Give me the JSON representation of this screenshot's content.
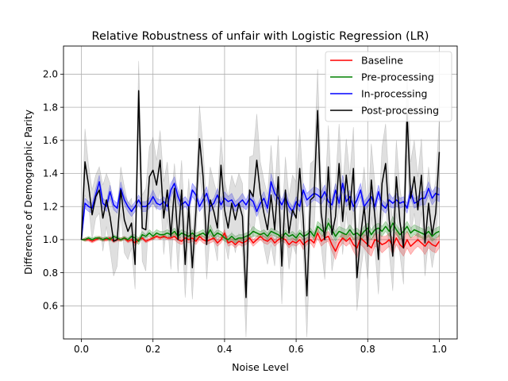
{
  "chart_data": {
    "type": "line",
    "title": "Relative Robustness of unfair with Logistic Regression (LR)",
    "xlabel": "Noise Level",
    "ylabel": "Difference of Demographic Parity",
    "xlim": [
      -0.05,
      1.05
    ],
    "ylim": [
      0.4,
      2.17
    ],
    "xticks": [
      0.0,
      0.2,
      0.4,
      0.6,
      0.8,
      1.0
    ],
    "yticks": [
      0.6,
      0.8,
      1.0,
      1.2,
      1.4,
      1.6,
      1.8,
      2.0
    ],
    "xtick_labels": [
      "0.0",
      "0.2",
      "0.4",
      "0.6",
      "0.8",
      "1.0"
    ],
    "ytick_labels": [
      "0.6",
      "0.8",
      "1.0",
      "1.2",
      "1.4",
      "1.6",
      "1.8",
      "2.0"
    ],
    "grid": true,
    "legend_position": "top-right",
    "x": [
      0.0,
      0.01,
      0.02,
      0.03,
      0.04,
      0.05,
      0.06,
      0.07,
      0.08,
      0.09,
      0.1,
      0.11,
      0.12,
      0.13,
      0.14,
      0.15,
      0.16,
      0.17,
      0.18,
      0.19,
      0.2,
      0.21,
      0.22,
      0.23,
      0.24,
      0.25,
      0.26,
      0.27,
      0.28,
      0.29,
      0.3,
      0.31,
      0.32,
      0.33,
      0.34,
      0.35,
      0.36,
      0.37,
      0.38,
      0.39,
      0.4,
      0.41,
      0.42,
      0.43,
      0.44,
      0.45,
      0.46,
      0.47,
      0.48,
      0.49,
      0.5,
      0.51,
      0.52,
      0.53,
      0.54,
      0.55,
      0.56,
      0.57,
      0.58,
      0.59,
      0.6,
      0.61,
      0.62,
      0.63,
      0.64,
      0.65,
      0.66,
      0.67,
      0.68,
      0.69,
      0.7,
      0.71,
      0.72,
      0.73,
      0.74,
      0.75,
      0.76,
      0.77,
      0.78,
      0.79,
      0.8,
      0.81,
      0.82,
      0.83,
      0.84,
      0.85,
      0.86,
      0.87,
      0.88,
      0.89,
      0.9,
      0.91,
      0.92,
      0.93,
      0.94,
      0.95,
      0.96,
      0.97,
      0.98,
      0.99,
      1.0
    ],
    "series": [
      {
        "name": "Baseline",
        "color": "#ff0000",
        "band_color": "#ff0000",
        "values": [
          1.0,
          1.0,
          1.0,
          0.99,
          1.0,
          1.01,
          1.0,
          1.0,
          1.01,
          0.99,
          1.0,
          1.0,
          1.01,
          0.99,
          1.0,
          0.98,
          1.0,
          1.01,
          0.99,
          1.0,
          1.01,
          1.02,
          1.01,
          1.02,
          1.01,
          1.01,
          1.02,
          1.0,
          0.99,
          1.01,
          1.0,
          1.01,
          0.99,
          1.02,
          1.0,
          0.99,
          1.0,
          1.01,
          0.98,
          1.0,
          1.04,
          0.98,
          0.99,
          0.97,
          0.99,
          0.98,
          0.99,
          1.01,
          0.98,
          1.0,
          1.02,
          1.0,
          0.99,
          1.01,
          0.98,
          1.0,
          1.01,
          1.0,
          0.97,
          0.99,
          0.98,
          1.0,
          0.97,
          0.99,
          1.0,
          0.98,
          1.04,
          0.99,
          1.01,
          1.02,
          0.97,
          0.93,
          0.98,
          1.01,
          0.99,
          1.01,
          0.97,
          0.95,
          1.01,
          0.99,
          0.97,
          0.95,
          1.0,
          0.99,
          0.97,
          0.98,
          1.0,
          0.96,
          1.01,
          0.97,
          0.95,
          1.0,
          0.96,
          0.98,
          1.0,
          0.98,
          0.96,
          0.99,
          0.97,
          0.96,
          0.99
        ],
        "spread": [
          0.0,
          0.01,
          0.01,
          0.01,
          0.01,
          0.01,
          0.01,
          0.01,
          0.01,
          0.01,
          0.01,
          0.01,
          0.01,
          0.01,
          0.01,
          0.02,
          0.01,
          0.01,
          0.01,
          0.01,
          0.01,
          0.01,
          0.01,
          0.01,
          0.01,
          0.01,
          0.02,
          0.02,
          0.02,
          0.02,
          0.02,
          0.02,
          0.02,
          0.02,
          0.02,
          0.02,
          0.02,
          0.02,
          0.02,
          0.02,
          0.02,
          0.02,
          0.02,
          0.02,
          0.02,
          0.02,
          0.02,
          0.02,
          0.02,
          0.02,
          0.02,
          0.02,
          0.02,
          0.02,
          0.02,
          0.02,
          0.02,
          0.02,
          0.02,
          0.02,
          0.02,
          0.02,
          0.03,
          0.02,
          0.02,
          0.03,
          0.03,
          0.03,
          0.03,
          0.03,
          0.04,
          0.05,
          0.03,
          0.03,
          0.03,
          0.03,
          0.04,
          0.06,
          0.04,
          0.04,
          0.05,
          0.05,
          0.04,
          0.04,
          0.05,
          0.04,
          0.04,
          0.05,
          0.04,
          0.04,
          0.05,
          0.05,
          0.05,
          0.04,
          0.04,
          0.04,
          0.05,
          0.04,
          0.04,
          0.04,
          0.04
        ]
      },
      {
        "name": "Pre-processing",
        "color": "#008000",
        "band_color": "#008000",
        "values": [
          1.0,
          1.0,
          1.01,
          1.0,
          1.01,
          1.01,
          1.0,
          1.01,
          1.0,
          1.02,
          1.01,
          1.0,
          1.01,
          1.0,
          1.02,
          1.01,
          0.99,
          1.03,
          1.02,
          1.04,
          1.02,
          1.04,
          1.03,
          1.03,
          1.04,
          1.03,
          1.05,
          1.02,
          1.04,
          1.03,
          1.02,
          1.04,
          1.02,
          1.03,
          1.04,
          1.02,
          1.06,
          1.02,
          1.04,
          1.03,
          1.01,
          1.0,
          1.02,
          1.0,
          1.01,
          1.01,
          1.02,
          1.03,
          1.05,
          1.04,
          1.03,
          1.04,
          1.02,
          1.05,
          1.04,
          1.03,
          1.01,
          1.04,
          1.02,
          1.03,
          1.01,
          1.04,
          1.02,
          1.03,
          1.05,
          1.02,
          1.08,
          1.06,
          1.04,
          1.1,
          1.06,
          1.02,
          1.05,
          1.04,
          1.03,
          1.06,
          1.03,
          1.04,
          1.02,
          1.05,
          1.07,
          1.03,
          1.06,
          1.07,
          1.05,
          1.08,
          1.05,
          1.1,
          1.06,
          1.03,
          1.05,
          1.08,
          1.04,
          1.06,
          1.05,
          1.04,
          1.03,
          1.05,
          1.02,
          1.04,
          1.05
        ],
        "spread": [
          0.0,
          0.01,
          0.01,
          0.01,
          0.01,
          0.01,
          0.01,
          0.01,
          0.01,
          0.01,
          0.01,
          0.01,
          0.01,
          0.01,
          0.01,
          0.02,
          0.02,
          0.02,
          0.01,
          0.02,
          0.02,
          0.02,
          0.02,
          0.02,
          0.02,
          0.02,
          0.02,
          0.02,
          0.02,
          0.02,
          0.02,
          0.02,
          0.02,
          0.02,
          0.02,
          0.02,
          0.03,
          0.02,
          0.02,
          0.02,
          0.02,
          0.02,
          0.02,
          0.02,
          0.02,
          0.02,
          0.02,
          0.02,
          0.03,
          0.02,
          0.02,
          0.02,
          0.02,
          0.02,
          0.02,
          0.02,
          0.02,
          0.02,
          0.02,
          0.02,
          0.02,
          0.02,
          0.02,
          0.02,
          0.02,
          0.02,
          0.03,
          0.03,
          0.03,
          0.03,
          0.03,
          0.03,
          0.03,
          0.03,
          0.03,
          0.03,
          0.03,
          0.03,
          0.03,
          0.03,
          0.03,
          0.03,
          0.03,
          0.03,
          0.03,
          0.03,
          0.03,
          0.04,
          0.03,
          0.03,
          0.03,
          0.03,
          0.03,
          0.03,
          0.03,
          0.03,
          0.03,
          0.03,
          0.03,
          0.03,
          0.03
        ]
      },
      {
        "name": "In-processing",
        "color": "#0000ff",
        "band_color": "#0000ff",
        "values": [
          1.0,
          1.22,
          1.2,
          1.19,
          1.27,
          1.35,
          1.22,
          1.2,
          1.29,
          1.21,
          1.19,
          1.31,
          1.24,
          1.2,
          1.17,
          1.2,
          1.24,
          1.2,
          1.2,
          1.22,
          1.26,
          1.22,
          1.21,
          1.23,
          1.2,
          1.3,
          1.34,
          1.26,
          1.21,
          1.23,
          1.2,
          1.3,
          1.27,
          1.2,
          1.24,
          1.28,
          1.2,
          1.22,
          1.27,
          1.21,
          1.25,
          1.23,
          1.24,
          1.2,
          1.22,
          1.24,
          1.21,
          1.25,
          1.23,
          1.17,
          1.22,
          1.25,
          1.19,
          1.35,
          1.28,
          1.25,
          1.21,
          1.26,
          1.2,
          1.17,
          1.23,
          1.2,
          1.3,
          1.24,
          1.26,
          1.28,
          1.27,
          1.25,
          1.29,
          1.23,
          1.21,
          1.3,
          1.22,
          1.34,
          1.23,
          1.26,
          1.2,
          1.24,
          1.3,
          1.2,
          1.23,
          1.26,
          1.2,
          1.29,
          1.21,
          1.19,
          1.24,
          1.22,
          1.24,
          1.22,
          1.23,
          1.19,
          1.29,
          1.22,
          1.23,
          1.25,
          1.25,
          1.31,
          1.25,
          1.28,
          1.27
        ],
        "spread": [
          0.0,
          0.03,
          0.03,
          0.03,
          0.04,
          0.04,
          0.03,
          0.03,
          0.04,
          0.03,
          0.03,
          0.04,
          0.03,
          0.03,
          0.03,
          0.03,
          0.03,
          0.03,
          0.03,
          0.03,
          0.04,
          0.03,
          0.03,
          0.03,
          0.03,
          0.04,
          0.04,
          0.04,
          0.03,
          0.03,
          0.03,
          0.04,
          0.04,
          0.03,
          0.04,
          0.04,
          0.03,
          0.03,
          0.04,
          0.03,
          0.04,
          0.03,
          0.04,
          0.03,
          0.03,
          0.04,
          0.03,
          0.04,
          0.03,
          0.03,
          0.03,
          0.04,
          0.03,
          0.05,
          0.04,
          0.04,
          0.03,
          0.04,
          0.03,
          0.03,
          0.03,
          0.03,
          0.04,
          0.04,
          0.04,
          0.04,
          0.04,
          0.04,
          0.04,
          0.03,
          0.03,
          0.04,
          0.03,
          0.05,
          0.03,
          0.04,
          0.03,
          0.04,
          0.04,
          0.03,
          0.03,
          0.04,
          0.03,
          0.04,
          0.03,
          0.03,
          0.04,
          0.03,
          0.04,
          0.03,
          0.03,
          0.03,
          0.04,
          0.03,
          0.03,
          0.04,
          0.04,
          0.04,
          0.04,
          0.04,
          0.04
        ]
      },
      {
        "name": "Post-processing",
        "color": "#000000",
        "band_color": "#808080",
        "values": [
          1.0,
          1.47,
          1.33,
          1.15,
          1.26,
          1.3,
          1.13,
          1.24,
          1.14,
          0.99,
          1.0,
          1.3,
          1.12,
          1.05,
          1.1,
          0.85,
          1.9,
          1.07,
          1.06,
          1.38,
          1.42,
          1.33,
          1.48,
          1.13,
          1.3,
          1.02,
          1.31,
          1.0,
          1.3,
          0.85,
          1.2,
          0.83,
          1.17,
          1.61,
          1.38,
          0.97,
          1.24,
          1.17,
          1.07,
          1.45,
          1.18,
          1.07,
          1.22,
          1.12,
          1.22,
          1.14,
          0.65,
          1.3,
          1.26,
          1.48,
          1.28,
          1.16,
          1.06,
          1.27,
          1.06,
          1.38,
          0.84,
          1.3,
          1.04,
          1.18,
          1.13,
          1.43,
          1.12,
          0.66,
          1.24,
          1.26,
          1.78,
          1.16,
          1.0,
          1.44,
          1.03,
          1.14,
          1.46,
          1.11,
          1.39,
          1.18,
          1.43,
          0.77,
          1.02,
          1.2,
          0.96,
          1.36,
          1.14,
          0.88,
          1.34,
          1.46,
          1.12,
          0.9,
          1.38,
          1.11,
          0.95,
          1.76,
          1.25,
          1.38,
          1.18,
          1.39,
          0.98,
          1.22,
          1.03,
          1.16,
          1.53
        ],
        "spread": [
          0.0,
          0.2,
          0.12,
          0.15,
          0.13,
          0.14,
          0.2,
          0.16,
          0.2,
          0.21,
          0.16,
          0.14,
          0.2,
          0.17,
          0.15,
          0.15,
          0.18,
          0.2,
          0.25,
          0.18,
          0.2,
          0.15,
          0.18,
          0.22,
          0.17,
          0.2,
          0.15,
          0.2,
          0.18,
          0.2,
          0.17,
          0.19,
          0.15,
          0.2,
          0.18,
          0.21,
          0.2,
          0.18,
          0.2,
          0.17,
          0.18,
          0.19,
          0.17,
          0.2,
          0.18,
          0.2,
          0.24,
          0.2,
          0.25,
          0.28,
          0.19,
          0.2,
          0.21,
          0.3,
          0.22,
          0.25,
          0.23,
          0.2,
          0.22,
          0.21,
          0.22,
          0.24,
          0.2,
          0.25,
          0.22,
          0.22,
          0.25,
          0.2,
          0.24,
          0.25,
          0.22,
          0.2,
          0.24,
          0.2,
          0.22,
          0.21,
          0.25,
          0.2,
          0.22,
          0.24,
          0.2,
          0.22,
          0.2,
          0.21,
          0.22,
          0.24,
          0.2,
          0.21,
          0.22,
          0.2,
          0.22,
          0.25,
          0.22,
          0.22,
          0.2,
          0.22,
          0.2,
          0.22,
          0.2,
          0.2,
          0.2
        ]
      }
    ]
  }
}
